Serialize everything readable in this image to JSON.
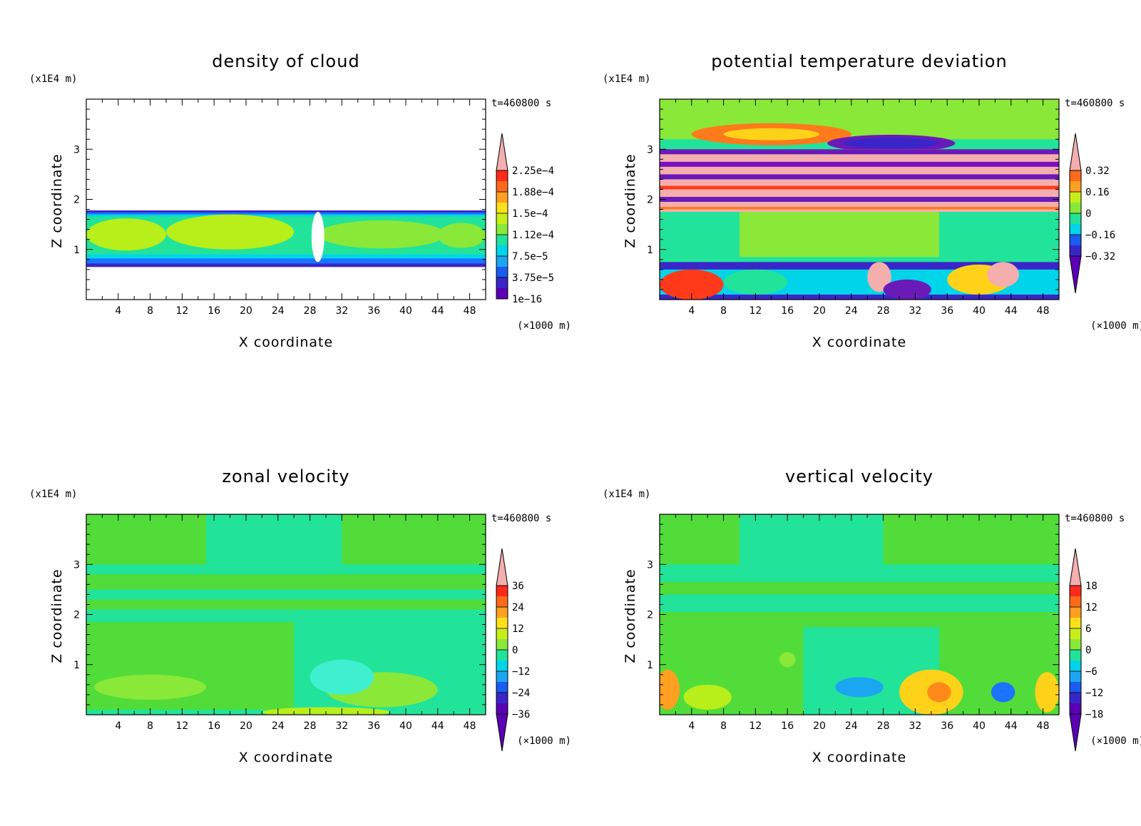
{
  "chart_data": [
    {
      "type": "heatmap",
      "title": "density of cloud",
      "xlabel": "X coordinate",
      "ylabel": "Z coordinate",
      "x_unit": "(×1000 m)",
      "y_unit": "(x1E4 m)",
      "time_label": "t=460800 s",
      "x_range": [
        0,
        50
      ],
      "y_range": [
        0,
        4
      ],
      "x_ticks": [
        4,
        8,
        12,
        16,
        20,
        24,
        28,
        32,
        36,
        40,
        44,
        48
      ],
      "y_ticks": [
        1,
        2,
        3
      ],
      "colorbar_labels": [
        "2.25e-4",
        "1.88e-4",
        "1.5e-4",
        "1.12e-4",
        "7.5e-5",
        "3.75e-5",
        "1e-16"
      ],
      "colorbar_upper_arrow": true,
      "colorbar_lower_arrow": false,
      "background": "#ffffff",
      "layers": [
        {
          "shape": "rect",
          "x0": 0,
          "x1": 50,
          "y0": 0.65,
          "y1": 1.78,
          "color": "#3a26c8"
        },
        {
          "shape": "rect",
          "x0": 0,
          "x1": 50,
          "y0": 0.72,
          "y1": 1.74,
          "color": "#1a74ff"
        },
        {
          "shape": "rect",
          "x0": 0,
          "x1": 50,
          "y0": 0.82,
          "y1": 1.7,
          "color": "#00d4e8"
        },
        {
          "shape": "rect",
          "x0": 0,
          "x1": 50,
          "y0": 0.9,
          "y1": 1.66,
          "color": "#22e39a"
        },
        {
          "shape": "ellipse",
          "cx": 5,
          "cy": 1.3,
          "rx": 5,
          "ry": 0.32,
          "color": "#b8ee1a"
        },
        {
          "shape": "ellipse",
          "cx": 18,
          "cy": 1.35,
          "rx": 8,
          "ry": 0.35,
          "color": "#b8ee1a"
        },
        {
          "shape": "ellipse",
          "cx": 37,
          "cy": 1.3,
          "rx": 8,
          "ry": 0.28,
          "color": "#8ae838"
        },
        {
          "shape": "ellipse",
          "cx": 47,
          "cy": 1.28,
          "rx": 3,
          "ry": 0.25,
          "color": "#8ae838"
        },
        {
          "shape": "ellipse",
          "cx": 29,
          "cy": 1.25,
          "rx": 0.8,
          "ry": 0.5,
          "color": "#ffffff"
        }
      ]
    },
    {
      "type": "heatmap",
      "title": "potential temperature deviation",
      "xlabel": "X coordinate",
      "ylabel": "Z coordinate",
      "x_unit": "(×1000 m)",
      "y_unit": "(x1E4 m)",
      "time_label": "t=460800 s",
      "x_range": [
        0,
        50
      ],
      "y_range": [
        0,
        4
      ],
      "x_ticks": [
        4,
        8,
        12,
        16,
        20,
        24,
        28,
        32,
        36,
        40,
        44,
        48
      ],
      "y_ticks": [
        1,
        2,
        3
      ],
      "colorbar_labels": [
        "0.32",
        "0.16",
        "0",
        "-0.16",
        "-0.32"
      ],
      "colorbar_upper_arrow": true,
      "colorbar_lower_arrow": true,
      "background": "#22e39a",
      "layers": [
        {
          "shape": "rect",
          "x0": 0,
          "x1": 50,
          "y0": 3.2,
          "y1": 4.0,
          "color": "#8ae838"
        },
        {
          "shape": "ellipse",
          "cx": 14,
          "cy": 3.3,
          "rx": 10,
          "ry": 0.22,
          "color": "#ff7a1a"
        },
        {
          "shape": "ellipse",
          "cx": 14,
          "cy": 3.3,
          "rx": 6,
          "ry": 0.12,
          "color": "#ffd21a"
        },
        {
          "shape": "ellipse",
          "cx": 29,
          "cy": 3.12,
          "rx": 8,
          "ry": 0.17,
          "color": "#6a1ab8"
        },
        {
          "shape": "ellipse",
          "cx": 29,
          "cy": 3.12,
          "rx": 6,
          "ry": 0.11,
          "color": "#3a26c8"
        },
        {
          "shape": "rect",
          "x0": 0,
          "x1": 50,
          "y0": 1.75,
          "y1": 3.0,
          "color": "#f4aeae"
        },
        {
          "shape": "rect",
          "x0": 0,
          "x1": 50,
          "y0": 2.9,
          "y1": 3.0,
          "color": "#6a1ab8"
        },
        {
          "shape": "rect",
          "x0": 0,
          "x1": 50,
          "y0": 2.65,
          "y1": 2.75,
          "color": "#7a10c0"
        },
        {
          "shape": "rect",
          "x0": 0,
          "x1": 50,
          "y0": 2.4,
          "y1": 2.5,
          "color": "#6a1ab8"
        },
        {
          "shape": "rect",
          "x0": 0,
          "x1": 50,
          "y0": 2.2,
          "y1": 2.27,
          "color": "#ff3a1a"
        },
        {
          "shape": "rect",
          "x0": 0,
          "x1": 50,
          "y0": 1.95,
          "y1": 2.05,
          "color": "#6a1ab8"
        },
        {
          "shape": "rect",
          "x0": 0,
          "x1": 50,
          "y0": 1.8,
          "y1": 1.85,
          "color": "#ff7a1a"
        },
        {
          "shape": "rect",
          "x0": 0,
          "x1": 50,
          "y0": 0.75,
          "y1": 1.75,
          "color": "#22e39a"
        },
        {
          "shape": "rect",
          "x0": 10,
          "x1": 35,
          "y0": 0.85,
          "y1": 1.75,
          "color": "#8ae838"
        },
        {
          "shape": "rect",
          "x0": 0,
          "x1": 50,
          "y0": 0.0,
          "y1": 0.75,
          "color": "#3a26c8"
        },
        {
          "shape": "rect",
          "x0": 0,
          "x1": 50,
          "y0": 0.1,
          "y1": 0.6,
          "color": "#00d4e8"
        },
        {
          "shape": "ellipse",
          "cx": 4,
          "cy": 0.3,
          "rx": 4,
          "ry": 0.3,
          "color": "#ff3a1a"
        },
        {
          "shape": "ellipse",
          "cx": 12,
          "cy": 0.35,
          "rx": 4,
          "ry": 0.25,
          "color": "#22e39a"
        },
        {
          "shape": "ellipse",
          "cx": 27.5,
          "cy": 0.45,
          "rx": 1.5,
          "ry": 0.3,
          "color": "#f4aeae"
        },
        {
          "shape": "ellipse",
          "cx": 40,
          "cy": 0.4,
          "rx": 4,
          "ry": 0.3,
          "color": "#ffd21a"
        },
        {
          "shape": "ellipse",
          "cx": 43,
          "cy": 0.5,
          "rx": 2,
          "ry": 0.25,
          "color": "#f4aeae"
        },
        {
          "shape": "ellipse",
          "cx": 31,
          "cy": 0.2,
          "rx": 3,
          "ry": 0.2,
          "color": "#6a1ab8"
        }
      ]
    },
    {
      "type": "heatmap",
      "title": "zonal velocity",
      "xlabel": "X coordinate",
      "ylabel": "Z coordinate",
      "x_unit": "(×1000 m)",
      "y_unit": "(x1E4 m)",
      "time_label": "t=460800 s",
      "x_range": [
        0,
        50
      ],
      "y_range": [
        0,
        4
      ],
      "x_ticks": [
        4,
        8,
        12,
        16,
        20,
        24,
        28,
        32,
        36,
        40,
        44,
        48
      ],
      "y_ticks": [
        1,
        2,
        3
      ],
      "colorbar_labels": [
        "36",
        "24",
        "12",
        "0",
        "-12",
        "-24",
        "-36"
      ],
      "colorbar_upper_arrow": true,
      "colorbar_lower_arrow": true,
      "background": "#22e39a",
      "layers": [
        {
          "shape": "rect",
          "x0": 0,
          "x1": 15,
          "y0": 3.0,
          "y1": 4.0,
          "color": "#52dc3a"
        },
        {
          "shape": "rect",
          "x0": 32,
          "x1": 50,
          "y0": 3.0,
          "y1": 4.0,
          "color": "#52dc3a"
        },
        {
          "shape": "rect",
          "x0": 0,
          "x1": 50,
          "y0": 2.5,
          "y1": 2.8,
          "color": "#52dc3a"
        },
        {
          "shape": "rect",
          "x0": 0,
          "x1": 50,
          "y0": 2.1,
          "y1": 2.3,
          "color": "#52dc3a"
        },
        {
          "shape": "rect",
          "x0": 0,
          "x1": 26,
          "y0": 0.1,
          "y1": 1.85,
          "color": "#52dc3a"
        },
        {
          "shape": "ellipse",
          "cx": 37,
          "cy": 0.5,
          "rx": 7,
          "ry": 0.35,
          "color": "#8ae838"
        },
        {
          "shape": "ellipse",
          "cx": 8,
          "cy": 0.55,
          "rx": 7,
          "ry": 0.25,
          "color": "#8ae838"
        },
        {
          "shape": "ellipse",
          "cx": 30,
          "cy": 0.05,
          "rx": 8,
          "ry": 0.1,
          "color": "#b8ee1a"
        },
        {
          "shape": "ellipse",
          "cx": 32,
          "cy": 0.75,
          "rx": 4,
          "ry": 0.35,
          "color": "#3ef0d0"
        }
      ]
    },
    {
      "type": "heatmap",
      "title": "vertical velocity",
      "xlabel": "X coordinate",
      "ylabel": "Z coordinate",
      "x_unit": "(×1000 m)",
      "y_unit": "(x1E4 m)",
      "time_label": "t=460800 s",
      "x_range": [
        0,
        50
      ],
      "y_range": [
        0,
        4
      ],
      "x_ticks": [
        4,
        8,
        12,
        16,
        20,
        24,
        28,
        32,
        36,
        40,
        44,
        48
      ],
      "y_ticks": [
        1,
        2,
        3
      ],
      "colorbar_labels": [
        "18",
        "12",
        "6",
        "0",
        "-6",
        "-12",
        "-18"
      ],
      "colorbar_upper_arrow": true,
      "colorbar_lower_arrow": true,
      "background": "#22e39a",
      "layers": [
        {
          "shape": "rect",
          "x0": 0,
          "x1": 10,
          "y0": 3.0,
          "y1": 4.0,
          "color": "#52dc3a"
        },
        {
          "shape": "rect",
          "x0": 28,
          "x1": 50,
          "y0": 3.0,
          "y1": 4.0,
          "color": "#52dc3a"
        },
        {
          "shape": "rect",
          "x0": 0,
          "x1": 50,
          "y0": 2.4,
          "y1": 2.65,
          "color": "#52dc3a"
        },
        {
          "shape": "rect",
          "x0": 0,
          "x1": 50,
          "y0": 1.75,
          "y1": 2.05,
          "color": "#52dc3a"
        },
        {
          "shape": "rect",
          "x0": 0,
          "x1": 18,
          "y0": 0.0,
          "y1": 1.75,
          "color": "#52dc3a"
        },
        {
          "shape": "rect",
          "x0": 35,
          "x1": 50,
          "y0": 0.0,
          "y1": 1.75,
          "color": "#52dc3a"
        },
        {
          "shape": "rect",
          "x0": 18,
          "x1": 35,
          "y0": 0.0,
          "y1": 1.0,
          "color": "#22e39a"
        },
        {
          "shape": "ellipse",
          "cx": 1,
          "cy": 0.5,
          "rx": 1.5,
          "ry": 0.4,
          "color": "#ffa020"
        },
        {
          "shape": "ellipse",
          "cx": 6,
          "cy": 0.35,
          "rx": 3,
          "ry": 0.25,
          "color": "#b8ee1a"
        },
        {
          "shape": "ellipse",
          "cx": 34,
          "cy": 0.45,
          "rx": 4,
          "ry": 0.45,
          "color": "#ffd21a"
        },
        {
          "shape": "ellipse",
          "cx": 35,
          "cy": 0.45,
          "rx": 1.5,
          "ry": 0.2,
          "color": "#ff8a1a"
        },
        {
          "shape": "ellipse",
          "cx": 48.5,
          "cy": 0.45,
          "rx": 1.5,
          "ry": 0.4,
          "color": "#ffd21a"
        },
        {
          "shape": "ellipse",
          "cx": 25,
          "cy": 0.55,
          "rx": 3,
          "ry": 0.2,
          "color": "#1aa6f0"
        },
        {
          "shape": "ellipse",
          "cx": 43,
          "cy": 0.45,
          "rx": 1.5,
          "ry": 0.2,
          "color": "#1a74ff"
        },
        {
          "shape": "ellipse",
          "cx": 16,
          "cy": 1.1,
          "rx": 1,
          "ry": 0.15,
          "color": "#8ae838"
        }
      ]
    }
  ],
  "colorbar_colors": [
    "#5b00b5",
    "#3a26c8",
    "#1a5bf0",
    "#1aa6f0",
    "#00d4e8",
    "#22e39a",
    "#52dc3a",
    "#8ae838",
    "#c8ee1a",
    "#ffe01a",
    "#ffa020",
    "#ff6a1a",
    "#ff2a1a",
    "#e01010",
    "#f4aeae"
  ]
}
